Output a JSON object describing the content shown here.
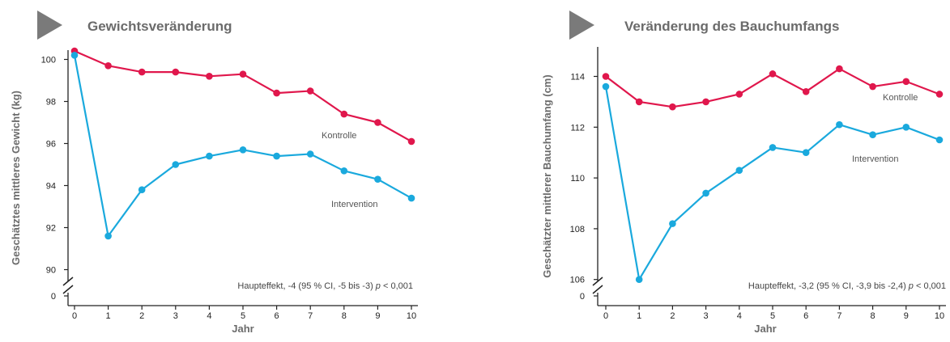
{
  "colors": {
    "kontrolle": "#e0174c",
    "intervention": "#1aa9dd",
    "title": "#6b6b6b",
    "axis": "#222222",
    "arrow": "#7a7a7a"
  },
  "chart_data": [
    {
      "type": "line",
      "title": "Gewichtsveränderung",
      "xlabel": "Jahr",
      "ylabel": "Geschätztes mittleres Gewicht (kg)",
      "x": [
        0,
        1,
        2,
        3,
        4,
        5,
        6,
        7,
        8,
        9,
        10
      ],
      "x_ticks": [
        "0",
        "1",
        "2",
        "3",
        "4",
        "5",
        "6",
        "7",
        "8",
        "9",
        "10"
      ],
      "y_ticks": [
        "100",
        "98",
        "96",
        "94",
        "92",
        "90"
      ],
      "y_ticks_values": [
        100,
        98,
        96,
        94,
        92,
        90
      ],
      "y_zero_label": "0",
      "ylim": [
        89.5,
        100.5
      ],
      "axis_break": true,
      "series": [
        {
          "name": "Kontrolle",
          "color": "#e0174c",
          "values": [
            100.4,
            99.7,
            99.4,
            99.4,
            99.2,
            99.3,
            98.4,
            98.5,
            97.4,
            97.0,
            96.1
          ]
        },
        {
          "name": "Intervention",
          "color": "#1aa9dd",
          "values": [
            100.2,
            91.6,
            93.8,
            95.0,
            95.4,
            95.7,
            95.4,
            95.5,
            94.7,
            94.3,
            93.4
          ]
        }
      ],
      "series_labels": [
        "Kontrolle",
        "Intervention"
      ],
      "annotation": {
        "prefix": "Haupteffekt, -4 (95 % CI, -5 bis -3) ",
        "p": "p",
        "suffix": " < 0,001"
      }
    },
    {
      "type": "line",
      "title": "Veränderung des Bauchumfangs",
      "xlabel": "Jahr",
      "ylabel": "Geschätzter mittlerer Bauchumfang (cm)",
      "x": [
        0,
        1,
        2,
        3,
        4,
        5,
        6,
        7,
        8,
        9,
        10
      ],
      "x_ticks": [
        "0",
        "1",
        "2",
        "3",
        "4",
        "5",
        "6",
        "7",
        "8",
        "9",
        "10"
      ],
      "y_ticks": [
        "114",
        "112",
        "110",
        "108",
        "106"
      ],
      "y_ticks_values": [
        114,
        112,
        110,
        108,
        106
      ],
      "y_zero_label": "0",
      "ylim": [
        105.5,
        115.0
      ],
      "axis_break": true,
      "series": [
        {
          "name": "Kontrolle",
          "color": "#e0174c",
          "values": [
            114.0,
            113.0,
            112.8,
            113.0,
            113.3,
            114.1,
            113.4,
            114.3,
            113.6,
            113.8,
            113.3
          ]
        },
        {
          "name": "Intervention",
          "color": "#1aa9dd",
          "values": [
            113.6,
            106.0,
            108.2,
            109.4,
            110.3,
            111.2,
            111.0,
            112.1,
            111.7,
            112.0,
            111.5
          ]
        }
      ],
      "series_labels": [
        "Kontrolle",
        "Intervention"
      ],
      "annotation": {
        "prefix": "Haupteffekt, -3,2 (95 % CI, -3,9 bis -2,4) ",
        "p": "p",
        "suffix": " < 0,001"
      }
    }
  ]
}
